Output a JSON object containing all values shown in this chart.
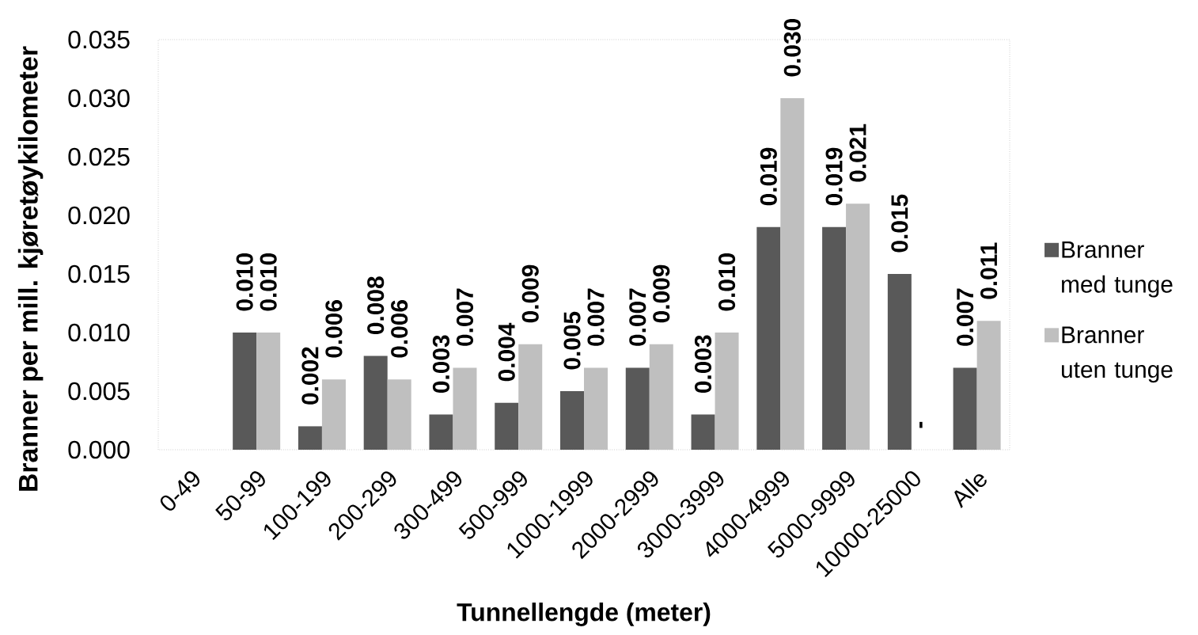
{
  "chart_data": {
    "type": "bar",
    "xlabel": "Tunnellengde (meter)",
    "ylabel": "Branner per mill. kjøretøykilometer",
    "categories": [
      "0-49",
      "50-99",
      "100-199",
      "200-299",
      "300-499",
      "500-999",
      "1000-1999",
      "2000-2999",
      "3000-3999",
      "4000-4999",
      "5000-9999",
      "10000-25000",
      "Alle"
    ],
    "series": [
      {
        "name": "Branner med tunge",
        "color": "#595959",
        "values": [
          null,
          0.01,
          0.002,
          0.008,
          0.003,
          0.004,
          0.005,
          0.007,
          0.003,
          0.019,
          0.019,
          0.015,
          0.007
        ],
        "value_labels": [
          null,
          "0.010",
          "0.002",
          "0.008",
          "0.003",
          "0.004",
          "0.005",
          "0.007",
          "0.003",
          "0.019",
          "0.019",
          "0.015",
          "0.007"
        ]
      },
      {
        "name": "Branner uten tunge",
        "color": "#bfbfbf",
        "values": [
          null,
          0.01,
          0.006,
          0.006,
          0.007,
          0.009,
          0.007,
          0.009,
          0.01,
          0.03,
          0.021,
          null,
          0.011
        ],
        "value_labels": [
          null,
          "0.010",
          "0.006",
          "0.006",
          "0.007",
          "0.009",
          "0.007",
          "0.009",
          "0.010",
          "0.030",
          "0.021",
          "-",
          "0.011"
        ]
      }
    ],
    "ylim": [
      0,
      0.035
    ],
    "yticks": [
      {
        "value": 0,
        "label": "0.000"
      },
      {
        "value": 0.005,
        "label": "0.005"
      },
      {
        "value": 0.01,
        "label": "0.010"
      },
      {
        "value": 0.015,
        "label": "0.015"
      },
      {
        "value": 0.02,
        "label": "0.020"
      },
      {
        "value": 0.025,
        "label": "0.025"
      },
      {
        "value": 0.03,
        "label": "0.030"
      },
      {
        "value": 0.035,
        "label": "0.035"
      }
    ],
    "legend": "right"
  }
}
